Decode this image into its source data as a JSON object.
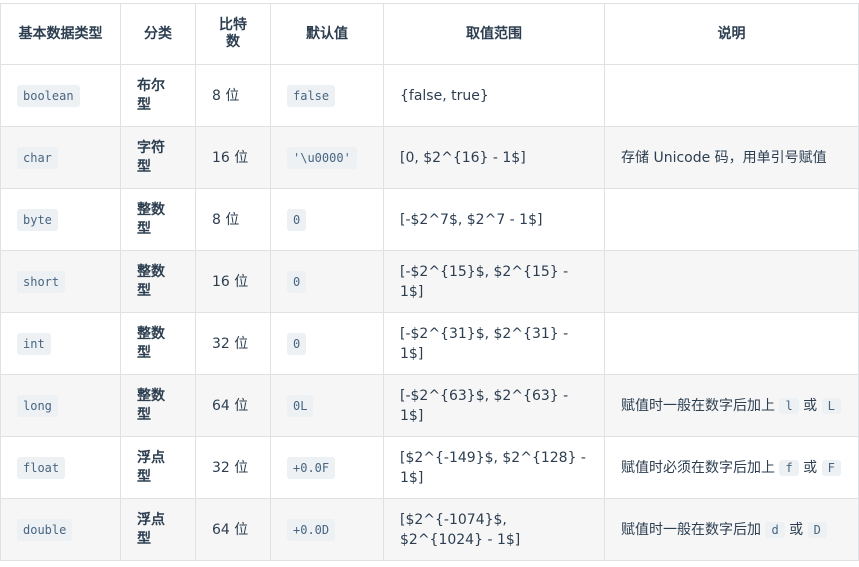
{
  "headers": [
    "基本数据类型",
    "分类",
    "比特数",
    "默认值",
    "取值范围",
    "说明"
  ],
  "rows": [
    {
      "type": "boolean",
      "category": "布尔型",
      "bits": "8 位",
      "default": "false",
      "range": "{false, true}",
      "desc": {
        "text": "",
        "code1": "",
        "mid": "",
        "code2": ""
      }
    },
    {
      "type": "char",
      "category": "字符型",
      "bits": "16 位",
      "default": "'\\u0000'",
      "range": "[0, $2^{16} - 1$]",
      "desc": {
        "text": "存储 Unicode 码，用单引号赋值",
        "code1": "",
        "mid": "",
        "code2": ""
      }
    },
    {
      "type": "byte",
      "category": "整数型",
      "bits": "8 位",
      "default": "0",
      "range": "[-$2^7$, $2^7 - 1$]",
      "desc": {
        "text": "",
        "code1": "",
        "mid": "",
        "code2": ""
      }
    },
    {
      "type": "short",
      "category": "整数型",
      "bits": "16 位",
      "default": "0",
      "range": "[-$2^{15}$, $2^{15} - 1$]",
      "desc": {
        "text": "",
        "code1": "",
        "mid": "",
        "code2": ""
      }
    },
    {
      "type": "int",
      "category": "整数型",
      "bits": "32 位",
      "default": "0",
      "range": "[-$2^{31}$, $2^{31} - 1$]",
      "desc": {
        "text": "",
        "code1": "",
        "mid": "",
        "code2": ""
      }
    },
    {
      "type": "long",
      "category": "整数型",
      "bits": "64 位",
      "default": "0L",
      "range": "[-$2^{63}$, $2^{63} - 1$]",
      "desc": {
        "text": "赋值时一般在数字后加上",
        "code1": "l",
        "mid": "或",
        "code2": "L"
      }
    },
    {
      "type": "float",
      "category": "浮点型",
      "bits": "32 位",
      "default": "+0.0F",
      "range": "[$2^{-149}$, $2^{128} - 1$]",
      "desc": {
        "text": "赋值时必须在数字后加上",
        "code1": "f",
        "mid": "或",
        "code2": "F"
      }
    },
    {
      "type": "double",
      "category": "浮点型",
      "bits": "64 位",
      "default": "+0.0D",
      "range": "[$2^{-1074}$, $2^{1024} - 1$]",
      "desc": {
        "text": "赋值时一般在数字后加",
        "code1": "d",
        "mid": "或",
        "code2": "D"
      }
    }
  ]
}
